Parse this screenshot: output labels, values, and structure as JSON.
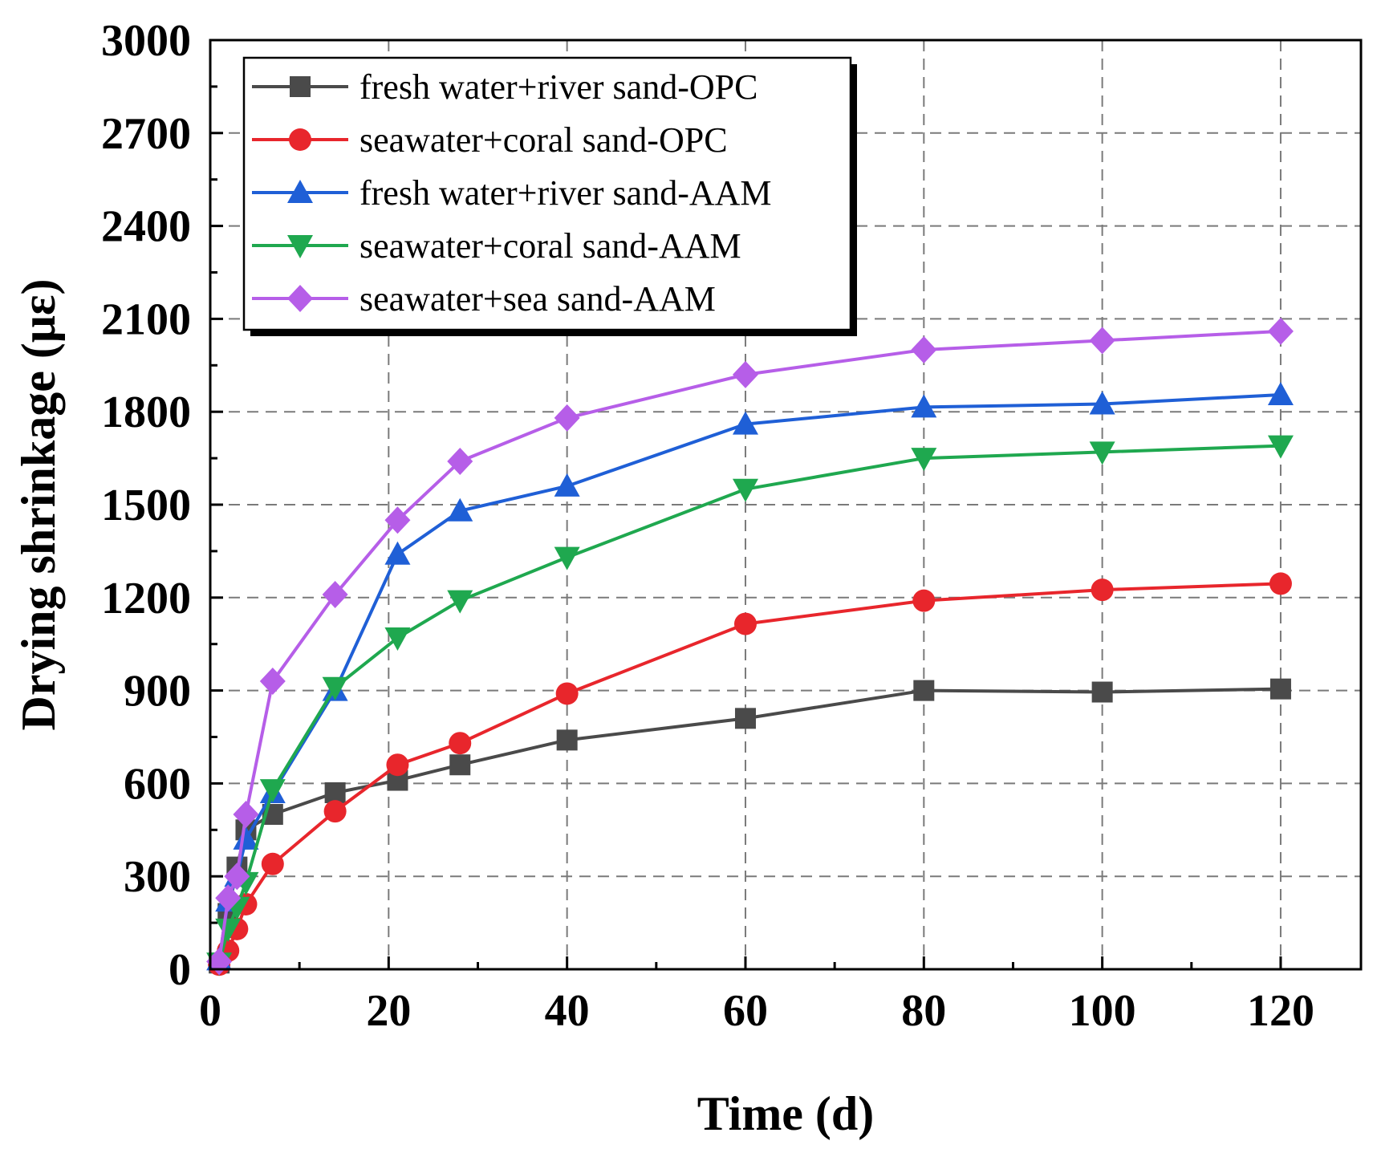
{
  "chart_data": {
    "type": "line",
    "title": "",
    "xlabel": "Time (d)",
    "ylabel": "Drying shrinkage (με)",
    "xlim": [
      0,
      129
    ],
    "ylim": [
      0,
      3000
    ],
    "xticks": [
      0,
      20,
      40,
      60,
      80,
      100,
      120
    ],
    "xtick_labels": [
      "0",
      "20",
      "40",
      "60",
      "80",
      "100",
      "120"
    ],
    "yticks": [
      0,
      300,
      600,
      900,
      1200,
      1500,
      1800,
      2100,
      2400,
      2700,
      3000
    ],
    "ytick_labels": [
      "0",
      "300",
      "600",
      "900",
      "1200",
      "1500",
      "1800",
      "2100",
      "2400",
      "2700",
      "3000"
    ],
    "grid": true,
    "legend_position": "top-left",
    "x": [
      1,
      2,
      3,
      4,
      7,
      14,
      21,
      28,
      40,
      60,
      80,
      100,
      120
    ],
    "series": [
      {
        "name": "fresh water+river sand-OPC",
        "color": "#4a4a4a",
        "marker": "square",
        "values": [
          20,
          180,
          330,
          450,
          500,
          570,
          610,
          660,
          740,
          810,
          900,
          895,
          905
        ]
      },
      {
        "name": "seawater+coral sand-OPC",
        "color": "#e8262c",
        "marker": "circle",
        "values": [
          15,
          60,
          130,
          210,
          340,
          510,
          660,
          730,
          890,
          1115,
          1190,
          1225,
          1245
        ]
      },
      {
        "name": "fresh water+river sand-AAM",
        "color": "#1f5fd6",
        "marker": "triangle-up",
        "values": [
          30,
          220,
          300,
          420,
          570,
          900,
          1340,
          1480,
          1560,
          1760,
          1815,
          1825,
          1855
        ]
      },
      {
        "name": "seawater+coral sand-AAM",
        "color": "#1fa84f",
        "marker": "triangle-down",
        "values": [
          20,
          130,
          200,
          280,
          580,
          910,
          1070,
          1190,
          1330,
          1550,
          1650,
          1670,
          1690
        ]
      },
      {
        "name": "seawater+sea sand-AAM",
        "color": "#b65ee8",
        "marker": "diamond",
        "values": [
          25,
          230,
          300,
          500,
          930,
          1210,
          1450,
          1640,
          1780,
          1920,
          2000,
          2030,
          2060
        ]
      }
    ]
  }
}
